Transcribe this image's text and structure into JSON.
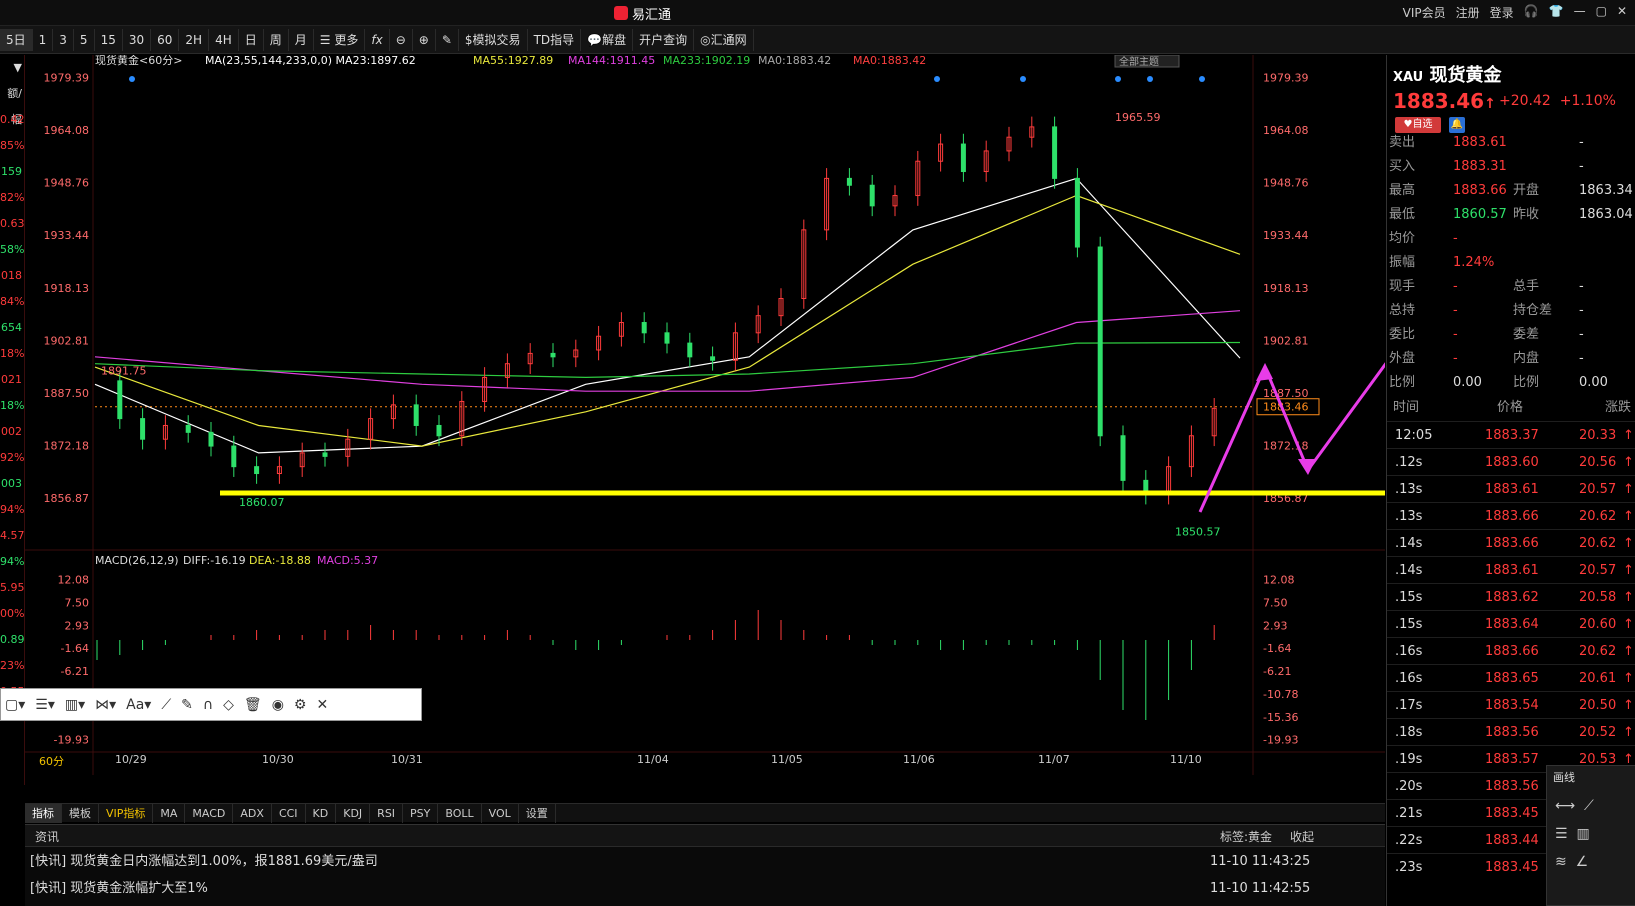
{
  "title_bar": {
    "app_name": "易汇通",
    "vip": "VIP会员",
    "register": "注册",
    "login": "登录"
  },
  "toolbar": {
    "periods": [
      "5日",
      "1",
      "3",
      "5",
      "15",
      "30",
      "60",
      "2H",
      "4H",
      "日",
      "周",
      "月"
    ],
    "more": "更多",
    "fx": "fx",
    "sim_trade": "模拟交易",
    "td": "TD指导",
    "analysis": "解盘",
    "account": "开户查询",
    "site": "汇通网"
  },
  "chart": {
    "symbol_label": "现货黄金<60分>",
    "ma_legend": [
      {
        "text": "MA(23,55,144,233,0,0) MA23:1897.62",
        "color": "#ffffff"
      },
      {
        "text": "MA55:1927.89",
        "color": "#e8e83c"
      },
      {
        "text": "MA144:1911.45",
        "color": "#e040e0"
      },
      {
        "text": "MA233:1902.19",
        "color": "#2ecc40"
      },
      {
        "text": "MA0:1883.42",
        "color": "#aaaaaa"
      },
      {
        "text": "MA0:1883.42",
        "color": "#ff4040"
      }
    ],
    "theme_btn": "全部主题",
    "y_ticks": [
      "1979.39",
      "1964.08",
      "1948.76",
      "1933.44",
      "1918.13",
      "1902.81",
      "1887.50",
      "1872.18",
      "1856.87"
    ],
    "price_box": "1883.46",
    "annotations": {
      "high": "1965.59",
      "left": "1891.75",
      "low1": "1860.07",
      "low2": "1850.57"
    },
    "macd_label": "MACD(26,12,9)",
    "macd_diff": "DIFF:-16.19",
    "macd_dea": "DEA:-18.88",
    "macd_val": "MACD:5.37",
    "macd_ticks": [
      "12.08",
      "7.50",
      "2.93",
      "-1.64",
      "-6.21",
      "-10.78",
      "-15.36",
      "-19.93"
    ],
    "x_labels": [
      "10/29",
      "10/30",
      "10/31",
      "11/04",
      "11/05",
      "11/06",
      "11/07",
      "11/10"
    ],
    "period_label": "60分",
    "left_strip": [
      "▼",
      "额/幅",
      "0.42",
      "85%",
      "159",
      "82%",
      "0.63",
      "58%",
      "018",
      "84%",
      "654",
      "18%",
      "021",
      "18%",
      "002",
      "92%",
      "003",
      "94%",
      "4.57",
      "94%",
      "5.95",
      "00%",
      "0.89",
      "23%",
      "0.55",
      "74%"
    ]
  },
  "chart_data": {
    "type": "line",
    "title": "现货黄金<60分>",
    "ylim": [
      1850.57,
      1979.39
    ],
    "x": [
      "10/29",
      "10/30",
      "10/31",
      "11/04",
      "11/05",
      "11/06",
      "11/07",
      "11/10"
    ],
    "series": [
      {
        "name": "MA23",
        "values": [
          1890,
          1870,
          1872,
          1890,
          1898,
          1935,
          1950,
          1897.62
        ]
      },
      {
        "name": "MA55",
        "values": [
          1895,
          1878,
          1872,
          1882,
          1895,
          1925,
          1945,
          1927.89
        ]
      },
      {
        "name": "MA144",
        "values": [
          1898,
          1894,
          1890,
          1888,
          1888,
          1892,
          1908,
          1911.45
        ]
      },
      {
        "name": "MA233",
        "values": [
          1896,
          1894,
          1893,
          1892,
          1893,
          1896,
          1902,
          1902.19
        ]
      }
    ],
    "support_level": 1860.07,
    "high": 1965.59,
    "low": 1850.57,
    "last": 1883.46
  },
  "quote": {
    "code": "XAU",
    "name": "现货黄金",
    "price": "1883.46",
    "change": "+20.42",
    "pct": "+1.10%",
    "fav": "自选",
    "rows": [
      {
        "l1": "卖出",
        "v1": "1883.61",
        "l2": "",
        "v2": "-"
      },
      {
        "l1": "买入",
        "v1": "1883.31",
        "l2": "",
        "v2": "-"
      },
      {
        "l1": "最高",
        "v1": "1883.66",
        "l2": "开盘",
        "v2": "1863.34"
      },
      {
        "l1": "最低",
        "v1": "1860.57",
        "l2": "昨收",
        "v2": "1863.04"
      },
      {
        "l1": "均价",
        "v1": "-",
        "l2": "",
        "v2": ""
      },
      {
        "l1": "振幅",
        "v1": "1.24%",
        "l2": "",
        "v2": ""
      },
      {
        "l1": "现手",
        "v1": "-",
        "l2": "总手",
        "v2": "-"
      },
      {
        "l1": "总持",
        "v1": "-",
        "l2": "持仓差",
        "v2": "-"
      },
      {
        "l1": "委比",
        "v1": "-",
        "l2": "委差",
        "v2": "-"
      },
      {
        "l1": "外盘",
        "v1": "-",
        "l2": "内盘",
        "v2": "-"
      },
      {
        "l1": "比例",
        "v1": "0.00",
        "l2": "比例",
        "v2": "0.00"
      }
    ],
    "tick_header": [
      "时间",
      "价格",
      "涨跌"
    ],
    "ticks": [
      {
        "t": "12:05",
        "p": "1883.37",
        "c": "20.33"
      },
      {
        "t": ".12s",
        "p": "1883.60",
        "c": "20.56"
      },
      {
        "t": ".13s",
        "p": "1883.61",
        "c": "20.57"
      },
      {
        "t": ".13s",
        "p": "1883.66",
        "c": "20.62"
      },
      {
        "t": ".14s",
        "p": "1883.66",
        "c": "20.62"
      },
      {
        "t": ".14s",
        "p": "1883.61",
        "c": "20.57"
      },
      {
        "t": ".15s",
        "p": "1883.62",
        "c": "20.58"
      },
      {
        "t": ".15s",
        "p": "1883.64",
        "c": "20.60"
      },
      {
        "t": ".16s",
        "p": "1883.66",
        "c": "20.62"
      },
      {
        "t": ".16s",
        "p": "1883.65",
        "c": "20.61"
      },
      {
        "t": ".17s",
        "p": "1883.54",
        "c": "20.50"
      },
      {
        "t": ".18s",
        "p": "1883.56",
        "c": "20.52"
      },
      {
        "t": ".19s",
        "p": "1883.57",
        "c": "20.53"
      },
      {
        "t": ".20s",
        "p": "1883.56",
        "c": "20.52"
      },
      {
        "t": ".21s",
        "p": "1883.45",
        "c": "20.41"
      },
      {
        "t": ".22s",
        "p": "1883.44",
        "c": "20.40"
      },
      {
        "t": ".23s",
        "p": "1883.45",
        "c": "20.41"
      }
    ],
    "draw_panel_title": "画线"
  },
  "indicator_tabs": [
    "指标",
    "模板",
    "VIP指标",
    "MA",
    "MACD",
    "ADX",
    "CCI",
    "KD",
    "KDJ",
    "RSI",
    "PSY",
    "BOLL",
    "VOL",
    "设置"
  ],
  "news": {
    "tab": "资讯",
    "tag": "标签:黄金",
    "collapse": "收起",
    "items": [
      {
        "text": "[快讯] 现货黄金日内涨幅达到1.00%，报1881.69美元/盎司",
        "time": "11-10 11:43:25"
      },
      {
        "text": "[快讯] 现货黄金涨幅扩大至1%",
        "time": "11-10 11:42:55"
      }
    ]
  },
  "floatbar": {
    "font": "Aa"
  }
}
